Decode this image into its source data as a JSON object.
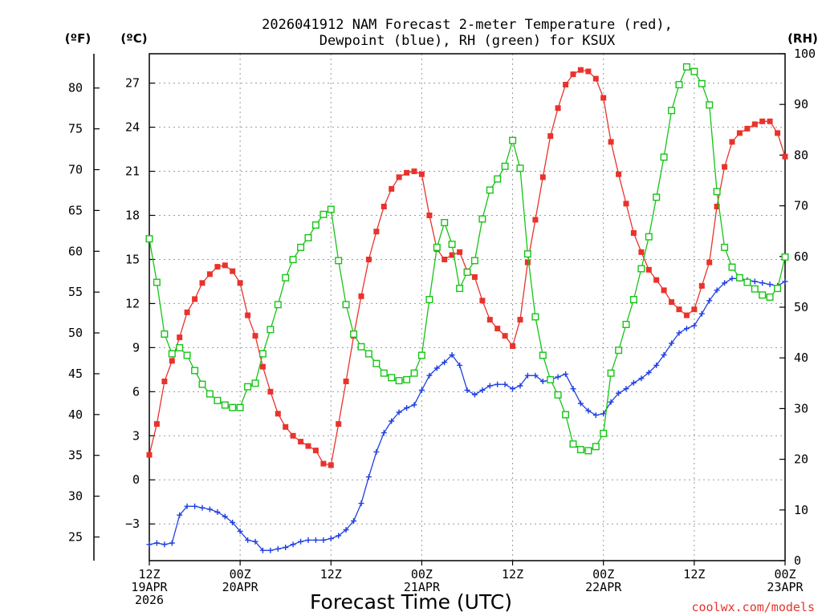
{
  "chart_data": {
    "type": "line",
    "title_lines": [
      "2026041912 NAM Forecast 2-meter Temperature (red),",
      "Dewpoint (blue), RH (green) for KSUX"
    ],
    "xlabel": "Forecast Time (UTC)",
    "credit": "coolwx.com/models",
    "units": {
      "fahrenheit": "(ºF)",
      "celsius": "(ºC)",
      "rh": "(RH)"
    },
    "x_hours": [
      0,
      1,
      2,
      3,
      4,
      5,
      6,
      7,
      8,
      9,
      10,
      11,
      12,
      13,
      14,
      15,
      16,
      17,
      18,
      19,
      20,
      21,
      22,
      23,
      24,
      25,
      26,
      27,
      28,
      29,
      30,
      31,
      32,
      33,
      34,
      35,
      36,
      37,
      38,
      39,
      40,
      41,
      42,
      43,
      44,
      45,
      46,
      47,
      48,
      49,
      50,
      51,
      52,
      53,
      54,
      55,
      56,
      57,
      58,
      59,
      60,
      61,
      62,
      63,
      64,
      65,
      66,
      67,
      68,
      69,
      70,
      71,
      72,
      73,
      74,
      75,
      76,
      77,
      78,
      79,
      80,
      81,
      82,
      83,
      84
    ],
    "xlim": [
      0,
      84
    ],
    "x_ticks": [
      {
        "hour": 0,
        "lines": [
          "12Z",
          "19APR",
          "2026"
        ]
      },
      {
        "hour": 12,
        "lines": [
          "00Z",
          "20APR"
        ]
      },
      {
        "hour": 24,
        "lines": [
          "12Z"
        ]
      },
      {
        "hour": 36,
        "lines": [
          "00Z",
          "21APR"
        ]
      },
      {
        "hour": 48,
        "lines": [
          "12Z"
        ]
      },
      {
        "hour": 60,
        "lines": [
          "00Z",
          "22APR"
        ]
      },
      {
        "hour": 72,
        "lines": [
          "12Z"
        ]
      },
      {
        "hour": 84,
        "lines": [
          "00Z",
          "23APR"
        ]
      }
    ],
    "celsius_axis": {
      "ylim": [
        -5.5,
        29.0
      ],
      "ticks": [
        -3,
        0,
        3,
        6,
        9,
        12,
        15,
        18,
        21,
        24,
        27
      ],
      "tick_labels": [
        "−3",
        "0",
        "3",
        "6",
        "9",
        "12",
        "15",
        "18",
        "21",
        "24",
        "27"
      ]
    },
    "fahrenheit_axis": {
      "ticks": [
        25,
        30,
        35,
        40,
        45,
        50,
        55,
        60,
        65,
        70,
        75,
        80
      ],
      "tick_labels": [
        "25",
        "30",
        "35",
        "40",
        "45",
        "50",
        "55",
        "60",
        "65",
        "70",
        "75",
        "80"
      ]
    },
    "rh_axis": {
      "ylim": [
        0,
        100
      ],
      "ticks": [
        0,
        10,
        20,
        30,
        40,
        50,
        60,
        70,
        80,
        90,
        100
      ],
      "tick_labels": [
        "0",
        "10",
        "20",
        "30",
        "40",
        "50",
        "60",
        "70",
        "80",
        "90",
        "100"
      ]
    },
    "series": [
      {
        "name": "Temperature",
        "units": "°C",
        "axis": "celsius",
        "color": "#e8332c",
        "marker": "filled-square",
        "values": [
          1.7,
          3.8,
          6.7,
          8.1,
          9.7,
          11.4,
          12.3,
          13.4,
          14.0,
          14.5,
          14.6,
          14.2,
          13.4,
          11.2,
          9.8,
          7.7,
          6.0,
          4.5,
          3.6,
          3.0,
          2.6,
          2.3,
          2.0,
          1.1,
          1.0,
          3.8,
          6.7,
          9.8,
          12.5,
          15.0,
          16.9,
          18.6,
          19.8,
          20.6,
          20.9,
          21.0,
          20.8,
          18.0,
          15.7,
          15.0,
          15.3,
          15.5,
          14.2,
          13.8,
          12.2,
          10.9,
          10.3,
          9.8,
          9.1,
          10.9,
          14.8,
          17.7,
          20.6,
          23.4,
          25.3,
          26.9,
          27.6,
          27.9,
          27.8,
          27.3,
          26.0,
          23.0,
          20.8,
          18.8,
          16.8,
          15.5,
          14.3,
          13.6,
          12.9,
          12.1,
          11.6,
          11.2,
          11.6,
          13.2,
          14.8,
          18.6,
          21.3,
          23.0,
          23.6,
          23.9,
          24.2,
          24.4,
          24.4,
          23.6,
          22.0
        ]
      },
      {
        "name": "Dewpoint",
        "units": "°C",
        "axis": "celsius",
        "color": "#2040e0",
        "marker": "plus",
        "values": [
          -4.4,
          -4.3,
          -4.4,
          -4.3,
          -2.4,
          -1.8,
          -1.8,
          -1.9,
          -2.0,
          -2.2,
          -2.5,
          -2.9,
          -3.5,
          -4.1,
          -4.2,
          -4.8,
          -4.8,
          -4.7,
          -4.6,
          -4.4,
          -4.2,
          -4.1,
          -4.1,
          -4.1,
          -4.0,
          -3.8,
          -3.4,
          -2.8,
          -1.6,
          0.2,
          1.9,
          3.2,
          4.0,
          4.6,
          4.9,
          5.1,
          6.1,
          7.1,
          7.6,
          8.0,
          8.5,
          7.8,
          6.1,
          5.8,
          6.1,
          6.4,
          6.5,
          6.5,
          6.2,
          6.4,
          7.1,
          7.1,
          6.7,
          6.8,
          7.0,
          7.2,
          6.2,
          5.2,
          4.7,
          4.4,
          4.5,
          5.3,
          5.9,
          6.2,
          6.6,
          6.9,
          7.3,
          7.8,
          8.5,
          9.3,
          10.0,
          10.3,
          10.5,
          11.3,
          12.2,
          12.9,
          13.4,
          13.7,
          13.7,
          13.6,
          13.5,
          13.4,
          13.3,
          13.2,
          13.5
        ]
      },
      {
        "name": "RH",
        "units": "%",
        "axis": "rh",
        "color": "#16c416",
        "marker": "open-square",
        "values": [
          63.5,
          54.9,
          44.7,
          40.8,
          42.0,
          40.5,
          37.5,
          34.8,
          32.9,
          31.6,
          30.7,
          30.2,
          30.2,
          34.3,
          35.0,
          40.8,
          45.6,
          50.5,
          55.8,
          59.4,
          61.8,
          63.7,
          66.2,
          68.3,
          69.3,
          59.2,
          50.5,
          44.7,
          42.2,
          40.8,
          38.9,
          37.0,
          36.1,
          35.5,
          35.7,
          37.0,
          40.5,
          51.5,
          61.8,
          66.7,
          62.4,
          53.7,
          56.9,
          59.2,
          67.4,
          73.1,
          75.3,
          77.8,
          82.9,
          77.4,
          60.5,
          48.1,
          40.5,
          35.7,
          32.7,
          28.8,
          23.0,
          21.9,
          21.7,
          22.5,
          25.1,
          37.0,
          41.5,
          46.6,
          51.5,
          57.6,
          63.9,
          71.7,
          79.6,
          88.8,
          93.9,
          97.4,
          96.5,
          94.1,
          89.9,
          72.8,
          61.8,
          57.9,
          55.8,
          54.9,
          53.6,
          52.4,
          52.0,
          53.7,
          59.9
        ]
      }
    ]
  }
}
